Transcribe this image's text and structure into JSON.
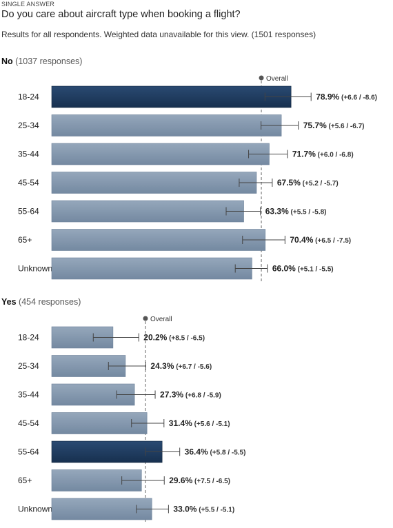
{
  "header": {
    "tag": "SINGLE ANSWER",
    "question": "Do you care about aircraft type when booking a flight?",
    "subtitle": "Results for all respondents. Weighted data unavailable for this view.",
    "total_responses": "(1501 responses)"
  },
  "overall_label": "Overall",
  "colors": {
    "highlight": "#1e3a5f",
    "bar": "#7f93a9",
    "marker": "#555555"
  },
  "chart_data": [
    {
      "type": "bar",
      "name": "No",
      "responses_label": "(1037 responses)",
      "overall": 69.1,
      "categories": [
        "18-24",
        "25-34",
        "35-44",
        "45-54",
        "55-64",
        "65+",
        "Unknown"
      ],
      "values": [
        78.9,
        75.7,
        71.7,
        67.5,
        63.3,
        70.4,
        66.0
      ],
      "err_plus": [
        6.6,
        5.6,
        6.0,
        5.2,
        5.5,
        6.5,
        5.1
      ],
      "err_minus": [
        8.6,
        6.7,
        6.8,
        5.7,
        5.8,
        7.5,
        5.5
      ],
      "highlight_index": 0
    },
    {
      "type": "bar",
      "name": "Yes",
      "responses_label": "(454 responses)",
      "overall": 30.9,
      "categories": [
        "18-24",
        "25-34",
        "35-44",
        "45-54",
        "55-64",
        "65+",
        "Unknown"
      ],
      "values": [
        20.2,
        24.3,
        27.3,
        31.4,
        36.4,
        29.6,
        33.0
      ],
      "err_plus": [
        8.5,
        6.7,
        6.8,
        5.6,
        5.8,
        7.5,
        5.5
      ],
      "err_minus": [
        6.5,
        5.6,
        5.9,
        5.1,
        5.5,
        6.5,
        5.1
      ],
      "highlight_index": 4
    }
  ]
}
